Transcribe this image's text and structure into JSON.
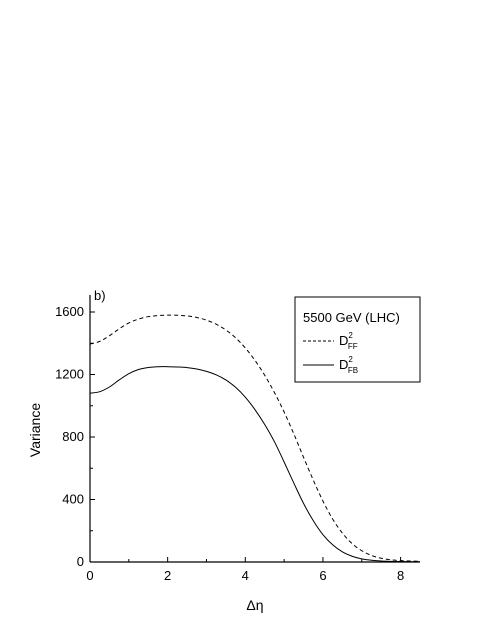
{
  "chart_data": {
    "type": "line",
    "panel_label": "b)",
    "xlabel": "Δη",
    "ylabel": "Variance",
    "xlim": [
      0,
      8.5
    ],
    "ylim": [
      0,
      1600
    ],
    "x_ticks": [
      0,
      2,
      4,
      6,
      8
    ],
    "y_ticks": [
      0,
      400,
      800,
      1200,
      1600
    ],
    "grid": false,
    "legend": {
      "placement": "top-right",
      "title": "5500 GeV (LHC)"
    },
    "series": [
      {
        "name": "D",
        "name_sup": "2",
        "name_sub": "FF",
        "style": "dashed",
        "color": "#000000",
        "x": [
          0,
          0.25,
          0.5,
          0.75,
          1.0,
          1.25,
          1.5,
          1.75,
          2.0,
          2.25,
          2.5,
          2.75,
          3.0,
          3.25,
          3.5,
          3.75,
          4.0,
          4.25,
          4.5,
          4.75,
          5.0,
          5.25,
          5.5,
          5.75,
          6.0,
          6.25,
          6.5,
          6.75,
          7.0,
          7.25,
          7.5,
          7.75,
          8.0,
          8.25,
          8.5
        ],
        "y": [
          1395,
          1412,
          1448,
          1492,
          1530,
          1555,
          1570,
          1577,
          1580,
          1579,
          1575,
          1565,
          1548,
          1522,
          1485,
          1435,
          1370,
          1290,
          1195,
          1085,
          960,
          820,
          670,
          525,
          390,
          275,
          185,
          118,
          72,
          42,
          24,
          14,
          9,
          6,
          4
        ]
      },
      {
        "name": "D",
        "name_sup": "2",
        "name_sub": "FB",
        "style": "solid",
        "color": "#000000",
        "x": [
          0,
          0.25,
          0.5,
          0.75,
          1.0,
          1.25,
          1.5,
          1.75,
          2.0,
          2.25,
          2.5,
          2.75,
          3.0,
          3.25,
          3.5,
          3.75,
          4.0,
          4.25,
          4.5,
          4.75,
          5.0,
          5.25,
          5.5,
          5.75,
          6.0,
          6.25,
          6.5,
          6.75,
          7.0,
          7.25,
          7.5,
          7.75,
          8.0,
          8.25,
          8.5
        ],
        "y": [
          1080,
          1090,
          1120,
          1165,
          1205,
          1232,
          1245,
          1250,
          1250,
          1248,
          1244,
          1235,
          1220,
          1198,
          1165,
          1118,
          1055,
          975,
          880,
          770,
          640,
          505,
          375,
          265,
          175,
          110,
          65,
          37,
          20,
          11,
          6,
          4,
          3,
          2,
          2
        ]
      }
    ]
  }
}
